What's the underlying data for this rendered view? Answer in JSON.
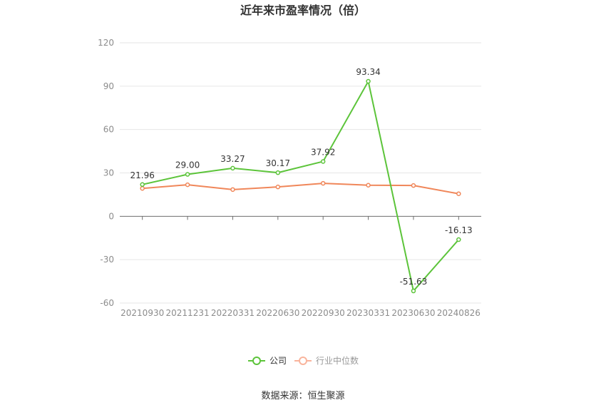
{
  "chart_data": {
    "type": "line",
    "title": "近年来市盈率情况（倍）",
    "xlabel": "",
    "ylabel": "",
    "categories": [
      "20210930",
      "20211231",
      "20220331",
      "20220630",
      "20220930",
      "20230331",
      "20230630",
      "20240826"
    ],
    "series": [
      {
        "name": "公司",
        "color": "#5cc43a",
        "values": [
          21.96,
          29.0,
          33.27,
          30.17,
          37.92,
          93.34,
          -51.63,
          -16.13
        ],
        "labels": [
          "21.96",
          "29.00",
          "33.27",
          "30.17",
          "37.92",
          "93.34",
          "-51.63",
          "-16.13"
        ]
      },
      {
        "name": "行业中位数",
        "color": "#f0875a",
        "values": [
          19.3,
          21.8,
          18.5,
          20.3,
          22.8,
          21.5,
          21.3,
          15.6
        ]
      }
    ],
    "ylim": [
      -60,
      120
    ],
    "yticks": [
      -60,
      -30,
      0,
      30,
      60,
      90,
      120
    ],
    "grid": true,
    "legend": "bottom-center"
  },
  "legend": {
    "legend_company_color": "#5cc43a",
    "legend_industry_color": "#f9b49c"
  },
  "source": "数据来源：恒生聚源"
}
